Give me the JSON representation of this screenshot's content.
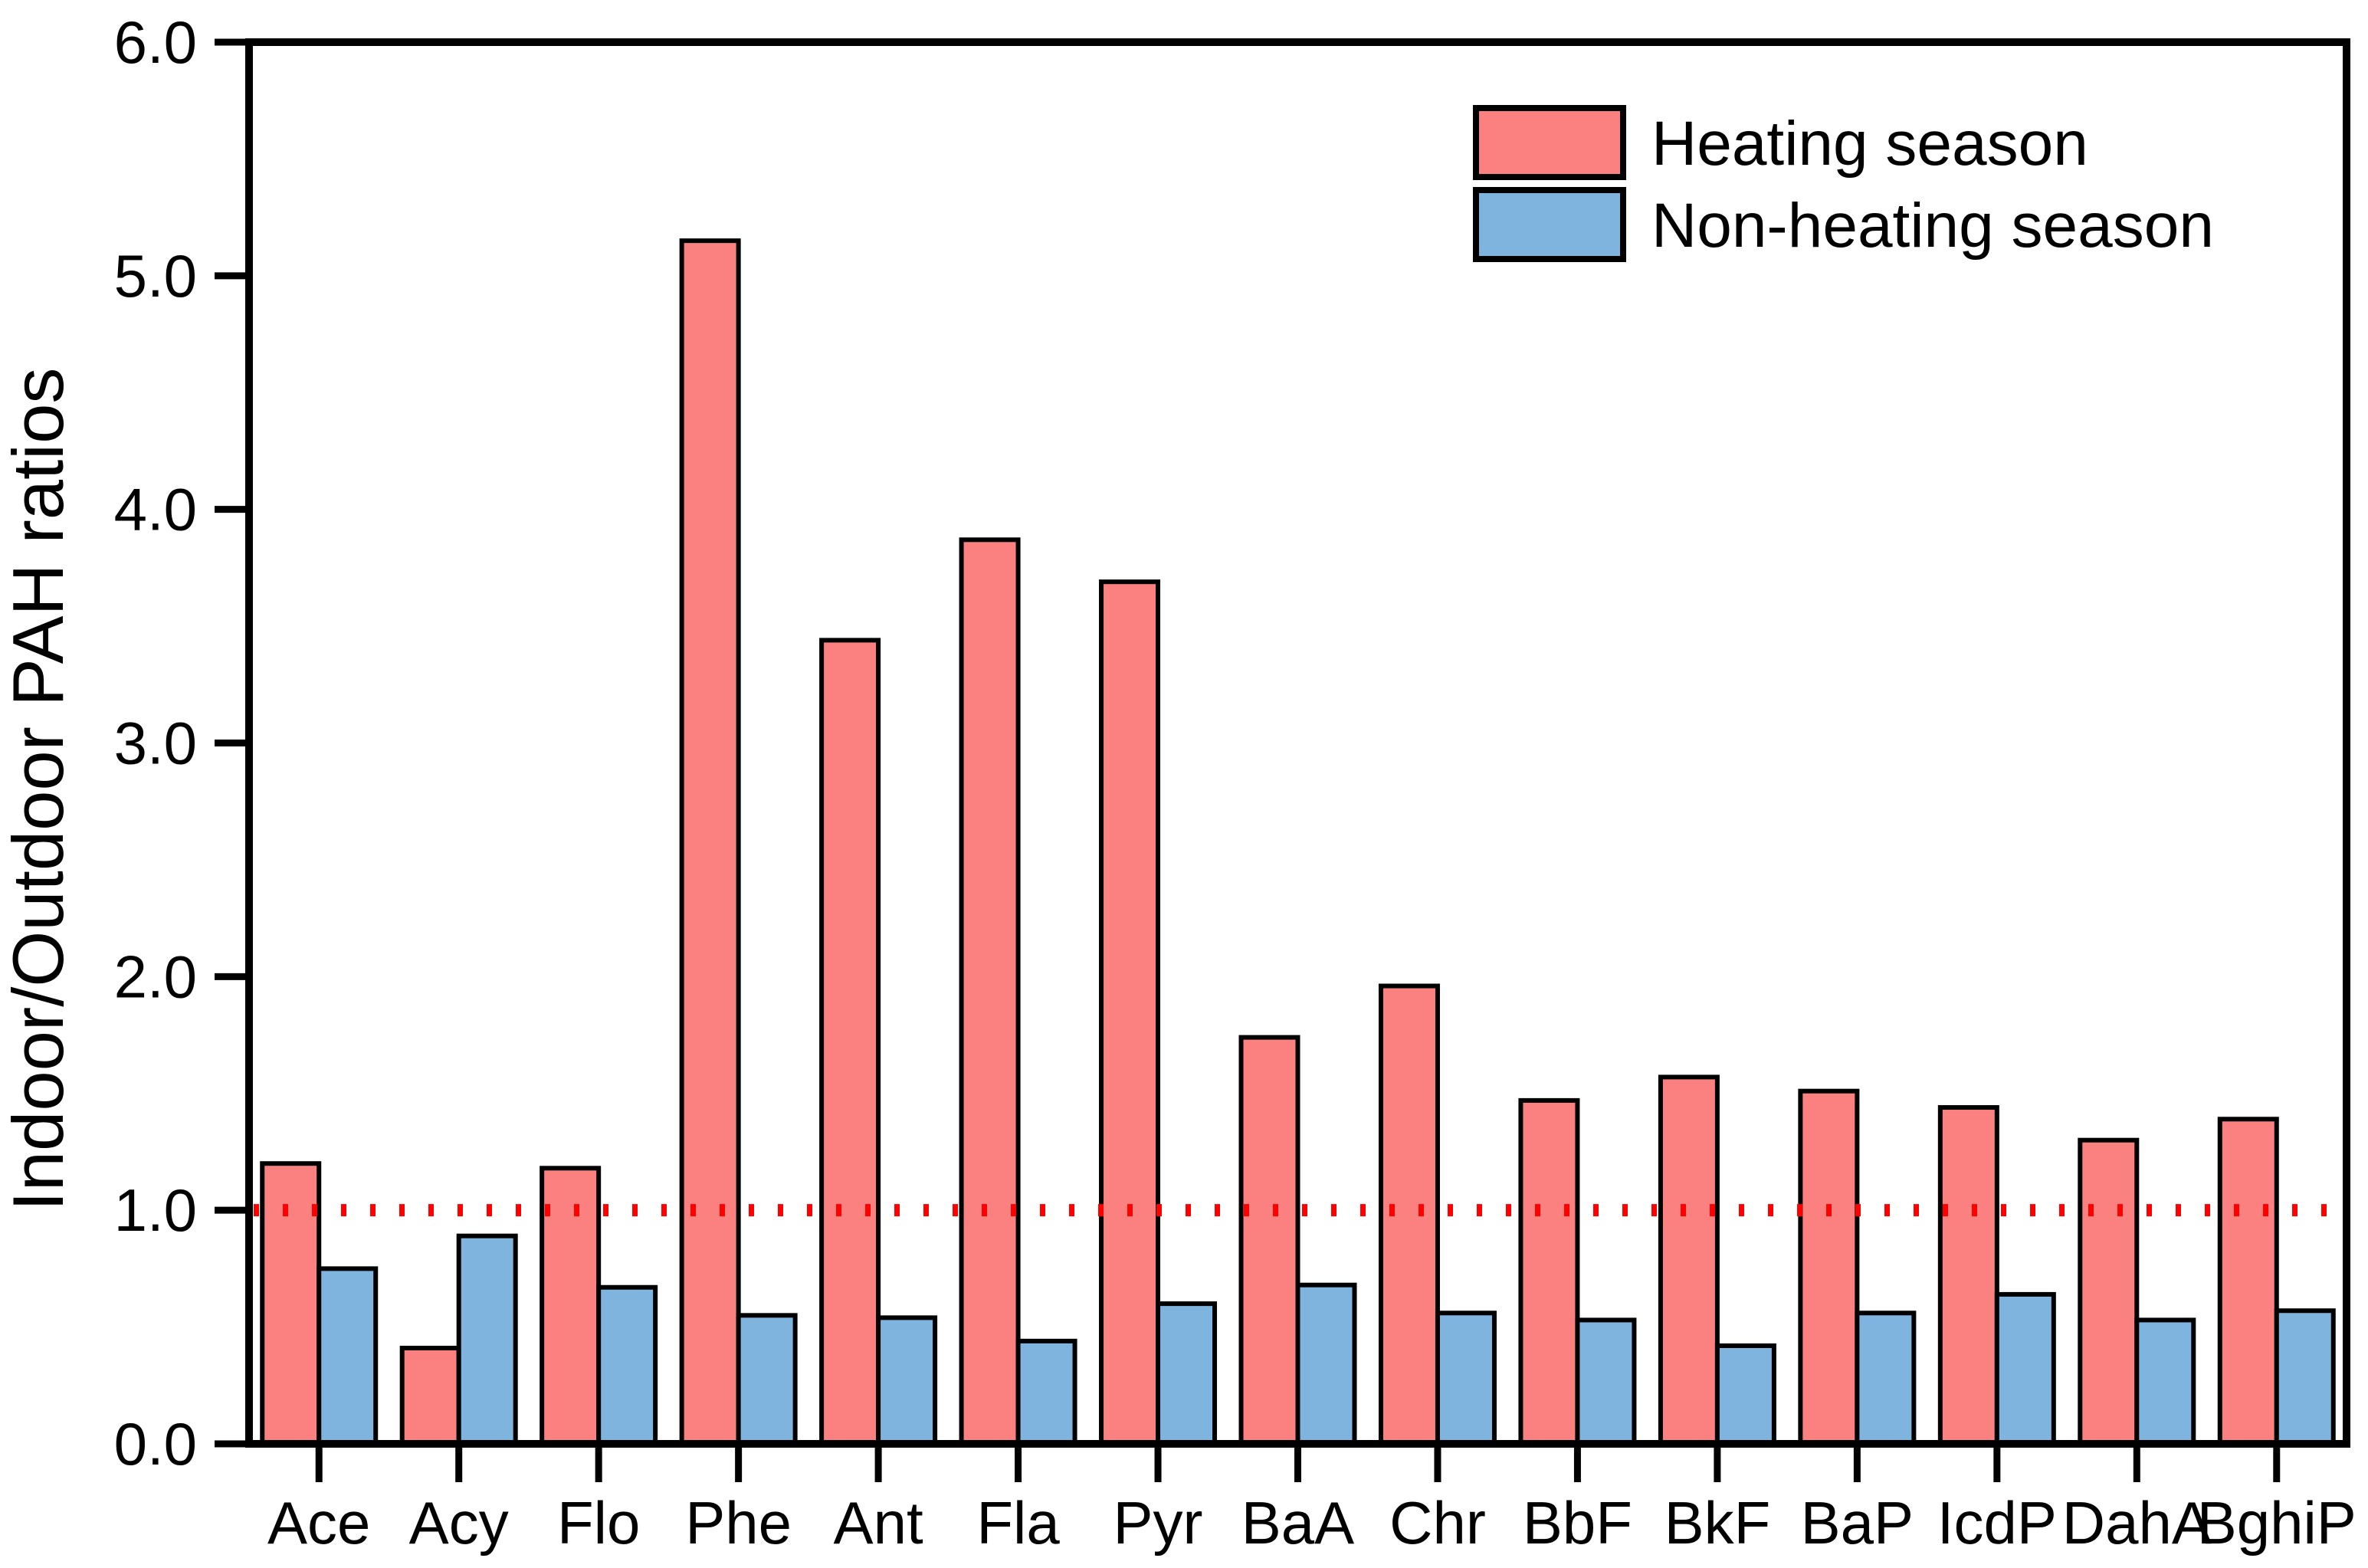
{
  "figure": {
    "background": "#ffffff",
    "axis_color": "#000000"
  },
  "y_axis": {
    "title": "Indoor/Outdoor PAH ratios",
    "tick_labels": [
      "0.0",
      "1.0",
      "2.0",
      "3.0",
      "4.0",
      "5.0",
      "6.0"
    ]
  },
  "legend": {
    "items": [
      {
        "label": "Heating season",
        "color": "#FB8181"
      },
      {
        "label": "Non-heating season",
        "color": "#7FB4DF"
      }
    ]
  },
  "chart_data": {
    "type": "bar",
    "title": "",
    "xlabel": "",
    "ylabel": "Indoor/Outdoor PAH ratios",
    "ylim": [
      0.0,
      6.0
    ],
    "yticks": [
      0,
      1,
      2,
      3,
      4,
      5,
      6
    ],
    "ytick_labels": [
      "0.0",
      "1.0",
      "2.0",
      "3.0",
      "4.0",
      "5.0",
      "6.0"
    ],
    "grid": false,
    "legend_position": "top-right",
    "bar_edge_color": "#000000",
    "categories": [
      "Ace",
      "Acy",
      "Flo",
      "Phe",
      "Ant",
      "Fla",
      "Pyr",
      "BaA",
      "Chr",
      "BbF",
      "BkF",
      "BaP",
      "IcdP",
      "DahA",
      "BghiP"
    ],
    "series": [
      {
        "name": "Heating season",
        "color": "#FB8181",
        "values": [
          1.2,
          0.41,
          1.18,
          5.15,
          3.44,
          3.87,
          3.69,
          1.74,
          1.96,
          1.47,
          1.57,
          1.51,
          1.44,
          1.3,
          1.39
        ]
      },
      {
        "name": "Non-heating season",
        "color": "#7FB4DF",
        "values": [
          0.75,
          0.89,
          0.67,
          0.55,
          0.54,
          0.44,
          0.6,
          0.68,
          0.56,
          0.53,
          0.42,
          0.56,
          0.64,
          0.53,
          0.57
        ]
      }
    ],
    "reference_line": {
      "y": 1.0,
      "color": "#FF0000",
      "style": "dotted"
    }
  }
}
